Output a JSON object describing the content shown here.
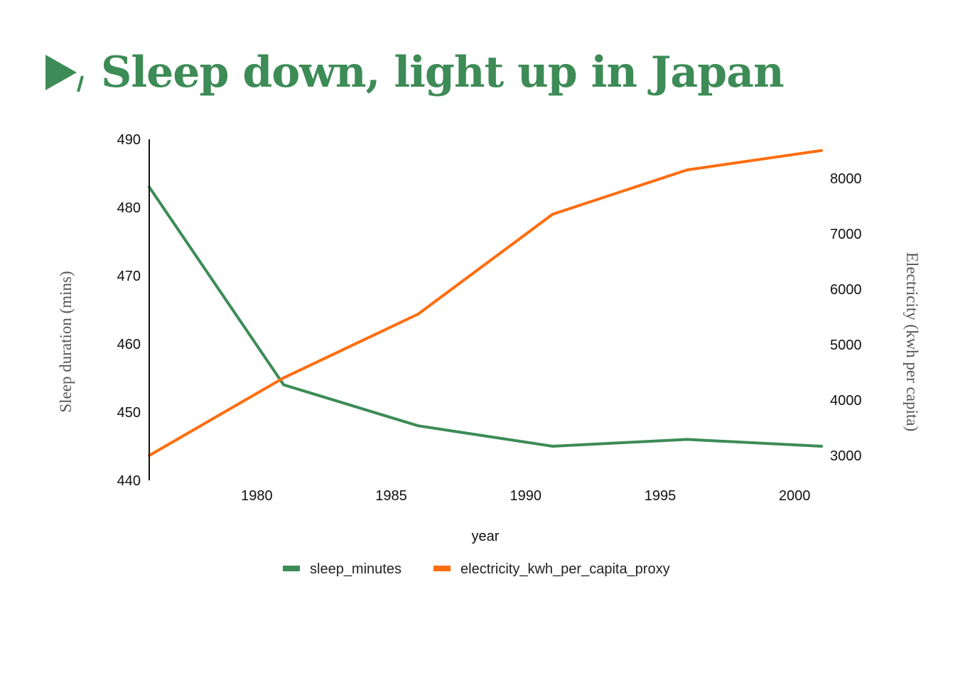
{
  "title": "Sleep down, light up in Japan",
  "colors": {
    "title": "#3d8b56",
    "sleep": "#3d8b56",
    "electricity": "#ff6d0e"
  },
  "chart_data": {
    "type": "line",
    "title": "Sleep down, light up in Japan",
    "xlabel": "year",
    "ylabel_left": "Sleep duration (mins)",
    "ylabel_right": "Electricity (kwh per capita)",
    "xlim": [
      1976,
      2001
    ],
    "xticks": [
      1980,
      1985,
      1990,
      1995,
      2000
    ],
    "ylim_left": [
      440,
      490
    ],
    "yticks_left": [
      440,
      450,
      460,
      470,
      480,
      490
    ],
    "ylim_right": [
      2500,
      8600
    ],
    "yticks_right": [
      3000,
      4000,
      5000,
      6000,
      7000,
      8000
    ],
    "legend_position": "bottom",
    "grid": false,
    "series": [
      {
        "name": "sleep_minutes",
        "axis": "left",
        "color": "#3d8b56",
        "x": [
          1976,
          1981,
          1986,
          1991,
          1996,
          2001
        ],
        "values": [
          483,
          454,
          448,
          445,
          446,
          445
        ]
      },
      {
        "name": "electricity_kwh_per_capita_proxy",
        "axis": "right",
        "color": "#ff6d0e",
        "x": [
          1976,
          1981,
          1986,
          1991,
          1996,
          2001
        ],
        "values": [
          3000,
          4400,
          5550,
          7350,
          8150,
          8500
        ]
      }
    ]
  }
}
